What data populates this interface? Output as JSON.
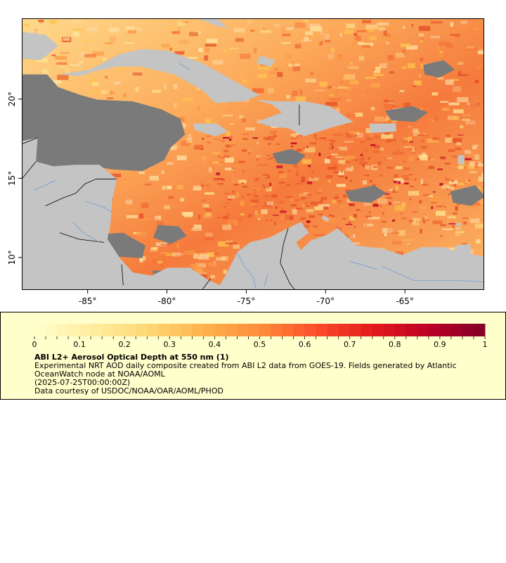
{
  "map": {
    "lon_ticks": [
      {
        "value": -85,
        "label": "-85°"
      },
      {
        "value": -80,
        "label": "-80°"
      },
      {
        "value": -75,
        "label": "-75°"
      },
      {
        "value": -70,
        "label": "-70°"
      },
      {
        "value": -65,
        "label": "-65°"
      }
    ],
    "lat_ticks": [
      {
        "value": 20,
        "label": "20°"
      },
      {
        "value": 15,
        "label": "15°"
      },
      {
        "value": 10,
        "label": "10°"
      }
    ],
    "lon_range": [
      -89,
      -60
    ],
    "lat_range": [
      8,
      25
    ],
    "colors": {
      "land": "#c4c4c4",
      "nodata": "#7a7a7a",
      "rivers": "#6d9ccf",
      "borders": "#000000"
    }
  },
  "legend": {
    "colorbar_ticks": [
      "0",
      "0.1",
      "0.2",
      "0.3",
      "0.4",
      "0.5",
      "0.6",
      "0.7",
      "0.8",
      "0.9",
      "1"
    ],
    "colorbar_range": [
      0,
      1
    ],
    "colormap": [
      "#ffffcc",
      "#ffeda0",
      "#fed976",
      "#feb24c",
      "#fd8d3c",
      "#fc4e2a",
      "#e31a1c",
      "#bd0026",
      "#800026"
    ],
    "title": "ABI L2+ Aerosol Optical Depth at 550 nm (1)",
    "description": "Experimental NRT AOD daily composite created from ABI L2 data from GOES-19. Fields generated by Atlantic OceanWatch node at NOAA/AOML",
    "time": "(2025-07-25T00:00:00Z)",
    "credit": "Data courtesy of USDOC/NOAA/OAR/AOML/PHOD"
  }
}
